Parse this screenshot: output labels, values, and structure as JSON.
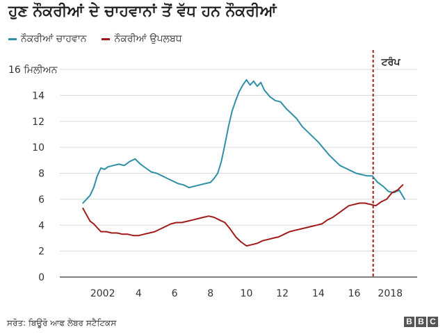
{
  "title": "ਹੁਣ ਨੌਕਰੀਆਂ ਦੇ ਚਾਹਵਾਨਾਂ ਤੋਂ ਵੱਧ ਹਨ ਨੌਕਰੀਆਂ",
  "legend": [
    {
      "label": "ਨੌਕਰੀਆਂ ਚਾਹਵਾਨ",
      "color": "#2e8fa6"
    },
    {
      "label": "ਨੌਕਰੀਆਂ ਉਪਲਬਧ",
      "color": "#a01a1a"
    }
  ],
  "source": "ਸਰੋਤ: ਬਿਊਰੋ ਆਫ ਲੇਬਰ ਸਟੈਟਿਕਸ",
  "brand": [
    "B",
    "B",
    "C"
  ],
  "chart_data": {
    "type": "line",
    "title": "ਹੁਣ ਨੌਕਰੀਆਂ ਦੇ ਚਾਹਵਾਨਾਂ ਤੋਂ ਵੱਧ ਹਨ ਨੌਕਰੀਆਂ",
    "xlabel": "",
    "ylabel": "16 ਮਿਲੀਅਨ",
    "xlim": [
      2000.0,
      2019.5
    ],
    "ylim": [
      0,
      16
    ],
    "x_ticks": [
      {
        "value": 2002,
        "label": "2002"
      },
      {
        "value": 2004,
        "label": "4"
      },
      {
        "value": 2006,
        "label": "6"
      },
      {
        "value": 2008,
        "label": "8"
      },
      {
        "value": 2010,
        "label": "10"
      },
      {
        "value": 2012,
        "label": "12"
      },
      {
        "value": 2014,
        "label": "14"
      },
      {
        "value": 2016,
        "label": "16"
      },
      {
        "value": 2018,
        "label": "2018"
      }
    ],
    "y_ticks": [
      {
        "value": 0,
        "label": "0"
      },
      {
        "value": 2,
        "label": "2"
      },
      {
        "value": 4,
        "label": "4"
      },
      {
        "value": 6,
        "label": "6"
      },
      {
        "value": 8,
        "label": "8"
      },
      {
        "value": 10,
        "label": "10"
      },
      {
        "value": 12,
        "label": "12"
      },
      {
        "value": 14,
        "label": "14"
      },
      {
        "value": 16,
        "label": "16 ਮਿਲੀਅਨ"
      }
    ],
    "grid": true,
    "annotation": {
      "x": 2017.05,
      "label": "ਟਰੰਪ",
      "style": "dashed-vertical"
    },
    "series": [
      {
        "name": "ਨੌਕਰੀਆਂ ਚਾਹਵਾਨ",
        "color": "#2e8fa6",
        "x": [
          2000.9,
          2001.1,
          2001.3,
          2001.5,
          2001.7,
          2001.9,
          2002.1,
          2002.3,
          2002.6,
          2002.9,
          2003.2,
          2003.5,
          2003.8,
          2004.1,
          2004.4,
          2004.7,
          2005.0,
          2005.3,
          2005.6,
          2005.9,
          2006.2,
          2006.5,
          2006.8,
          2007.1,
          2007.4,
          2007.7,
          2008.0,
          2008.2,
          2008.4,
          2008.6,
          2008.8,
          2009.0,
          2009.2,
          2009.4,
          2009.6,
          2009.8,
          2010.0,
          2010.2,
          2010.4,
          2010.6,
          2010.8,
          2011.0,
          2011.3,
          2011.6,
          2011.9,
          2012.2,
          2012.5,
          2012.8,
          2013.1,
          2013.4,
          2013.7,
          2014.0,
          2014.3,
          2014.6,
          2014.9,
          2015.2,
          2015.5,
          2015.8,
          2016.1,
          2016.4,
          2016.7,
          2017.0,
          2017.3,
          2017.6,
          2017.9,
          2018.2,
          2018.5,
          2018.8
        ],
        "values": [
          5.7,
          6.0,
          6.3,
          6.9,
          7.8,
          8.4,
          8.3,
          8.5,
          8.6,
          8.7,
          8.6,
          8.9,
          9.1,
          8.7,
          8.4,
          8.1,
          8.0,
          7.8,
          7.6,
          7.4,
          7.2,
          7.1,
          6.9,
          7.0,
          7.1,
          7.2,
          7.3,
          7.6,
          8.0,
          8.9,
          10.2,
          11.6,
          12.8,
          13.6,
          14.3,
          14.8,
          15.2,
          14.8,
          15.1,
          14.7,
          15.0,
          14.4,
          13.9,
          13.6,
          13.5,
          13.0,
          12.6,
          12.2,
          11.6,
          11.2,
          10.8,
          10.4,
          9.9,
          9.4,
          9.0,
          8.6,
          8.4,
          8.2,
          8.0,
          7.9,
          7.8,
          7.8,
          7.3,
          7.0,
          6.6,
          6.5,
          6.7,
          6.0
        ]
      },
      {
        "name": "ਨੌਕਰੀਆਂ ਉਪਲਬਧ",
        "color": "#a01a1a",
        "x": [
          2000.9,
          2001.1,
          2001.3,
          2001.5,
          2001.7,
          2001.9,
          2002.2,
          2002.5,
          2002.8,
          2003.1,
          2003.4,
          2003.7,
          2004.0,
          2004.3,
          2004.6,
          2004.9,
          2005.2,
          2005.5,
          2005.8,
          2006.1,
          2006.4,
          2006.7,
          2007.0,
          2007.3,
          2007.6,
          2007.9,
          2008.2,
          2008.5,
          2008.8,
          2009.1,
          2009.4,
          2009.7,
          2010.0,
          2010.3,
          2010.6,
          2010.9,
          2011.2,
          2011.5,
          2011.8,
          2012.1,
          2012.4,
          2012.7,
          2013.0,
          2013.3,
          2013.6,
          2013.9,
          2014.2,
          2014.5,
          2014.8,
          2015.1,
          2015.4,
          2015.7,
          2016.0,
          2016.3,
          2016.6,
          2016.9,
          2017.2,
          2017.5,
          2017.8,
          2018.1,
          2018.4,
          2018.7
        ],
        "values": [
          5.3,
          4.8,
          4.3,
          4.1,
          3.8,
          3.5,
          3.5,
          3.4,
          3.4,
          3.3,
          3.3,
          3.2,
          3.2,
          3.3,
          3.4,
          3.5,
          3.7,
          3.9,
          4.1,
          4.2,
          4.2,
          4.3,
          4.4,
          4.5,
          4.6,
          4.7,
          4.6,
          4.4,
          4.2,
          3.7,
          3.1,
          2.7,
          2.4,
          2.5,
          2.6,
          2.8,
          2.9,
          3.0,
          3.1,
          3.3,
          3.5,
          3.6,
          3.7,
          3.8,
          3.9,
          4.0,
          4.1,
          4.4,
          4.6,
          4.9,
          5.2,
          5.5,
          5.6,
          5.7,
          5.7,
          5.6,
          5.5,
          5.8,
          6.0,
          6.5,
          6.7,
          7.1
        ]
      }
    ]
  }
}
